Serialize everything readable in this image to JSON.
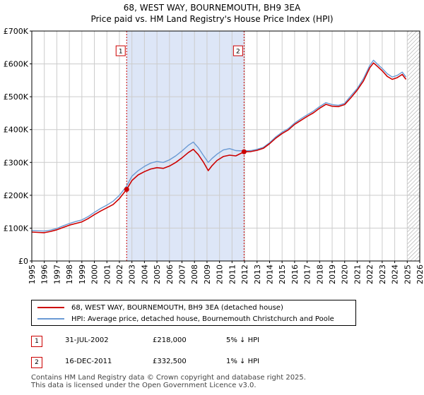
{
  "title_line1": "68, WEST WAY, BOURNEMOUTH, BH9 3EA",
  "title_line2": "Price paid vs. HM Land Registry's House Price Index (HPI)",
  "chart_data": {
    "type": "line",
    "title": "68, WEST WAY, BOURNEMOUTH, BH9 3EA — Price paid vs. HM Land Registry's House Price Index (HPI)",
    "xlabel": "",
    "ylabel": "",
    "xlim": [
      1995,
      2026
    ],
    "ylim": [
      0,
      700000
    ],
    "x_ticks": [
      "1995",
      "1996",
      "1997",
      "1998",
      "1999",
      "2000",
      "2001",
      "2002",
      "2003",
      "2004",
      "2005",
      "2006",
      "2007",
      "2008",
      "2009",
      "2010",
      "2011",
      "2012",
      "2013",
      "2014",
      "2015",
      "2016",
      "2017",
      "2018",
      "2019",
      "2020",
      "2021",
      "2022",
      "2023",
      "2024",
      "2025",
      "2026"
    ],
    "y_ticks": [
      {
        "value": 0,
        "label": "£0"
      },
      {
        "value": 100000,
        "label": "£100K"
      },
      {
        "value": 200000,
        "label": "£200K"
      },
      {
        "value": 300000,
        "label": "£300K"
      },
      {
        "value": 400000,
        "label": "£400K"
      },
      {
        "value": 500000,
        "label": "£500K"
      },
      {
        "value": 600000,
        "label": "£600K"
      },
      {
        "value": 700000,
        "label": "£700K"
      }
    ],
    "grid": true,
    "shaded_period": [
      2002.58,
      2011.96
    ],
    "future_hatch_from": 2025.0,
    "series": [
      {
        "name": "HPI: Average price, detached house, Bournemouth Christchurch and Poole",
        "color": "#6a9ad4",
        "points": [
          [
            1995,
            93000
          ],
          [
            1995.5,
            92000
          ],
          [
            1996,
            91000
          ],
          [
            1996.5,
            94000
          ],
          [
            1997,
            99000
          ],
          [
            1997.5,
            107000
          ],
          [
            1998,
            114000
          ],
          [
            1998.5,
            120000
          ],
          [
            1999,
            125000
          ],
          [
            1999.5,
            135000
          ],
          [
            2000,
            148000
          ],
          [
            2000.5,
            160000
          ],
          [
            2001,
            170000
          ],
          [
            2001.5,
            182000
          ],
          [
            2002,
            200000
          ],
          [
            2002.58,
            228000
          ],
          [
            2003,
            258000
          ],
          [
            2003.5,
            275000
          ],
          [
            2004,
            288000
          ],
          [
            2004.5,
            298000
          ],
          [
            2005,
            303000
          ],
          [
            2005.5,
            300000
          ],
          [
            2006,
            308000
          ],
          [
            2006.5,
            320000
          ],
          [
            2007,
            335000
          ],
          [
            2007.5,
            352000
          ],
          [
            2007.9,
            362000
          ],
          [
            2008.3,
            345000
          ],
          [
            2008.7,
            322000
          ],
          [
            2009.1,
            300000
          ],
          [
            2009.4,
            312000
          ],
          [
            2009.8,
            325000
          ],
          [
            2010.3,
            338000
          ],
          [
            2010.8,
            342000
          ],
          [
            2011.3,
            336000
          ],
          [
            2011.96,
            335000
          ],
          [
            2012.5,
            336000
          ],
          [
            2013,
            340000
          ],
          [
            2013.5,
            346000
          ],
          [
            2014,
            360000
          ],
          [
            2014.5,
            378000
          ],
          [
            2015,
            392000
          ],
          [
            2015.5,
            403000
          ],
          [
            2016,
            420000
          ],
          [
            2016.5,
            433000
          ],
          [
            2017,
            445000
          ],
          [
            2017.5,
            456000
          ],
          [
            2018,
            470000
          ],
          [
            2018.5,
            482000
          ],
          [
            2019,
            476000
          ],
          [
            2019.5,
            474000
          ],
          [
            2020,
            480000
          ],
          [
            2020.5,
            503000
          ],
          [
            2021,
            525000
          ],
          [
            2021.5,
            555000
          ],
          [
            2022,
            595000
          ],
          [
            2022.3,
            611000
          ],
          [
            2022.6,
            600000
          ],
          [
            2023,
            586000
          ],
          [
            2023.4,
            570000
          ],
          [
            2023.8,
            560000
          ],
          [
            2024.2,
            565000
          ],
          [
            2024.6,
            575000
          ],
          [
            2024.9,
            560000
          ]
        ]
      },
      {
        "name": "68, WEST WAY, BOURNEMOUTH, BH9 3EA (detached house)",
        "color": "#cc0000",
        "points": [
          [
            1995,
            88000
          ],
          [
            1995.5,
            87000
          ],
          [
            1996,
            86000
          ],
          [
            1996.5,
            90000
          ],
          [
            1997,
            95000
          ],
          [
            1997.5,
            102000
          ],
          [
            1998,
            109000
          ],
          [
            1998.5,
            114000
          ],
          [
            1999,
            119000
          ],
          [
            1999.5,
            129000
          ],
          [
            2000,
            141000
          ],
          [
            2000.5,
            152000
          ],
          [
            2001,
            162000
          ],
          [
            2001.5,
            172000
          ],
          [
            2002,
            190000
          ],
          [
            2002.58,
            218000
          ],
          [
            2003,
            245000
          ],
          [
            2003.5,
            262000
          ],
          [
            2004,
            272000
          ],
          [
            2004.5,
            280000
          ],
          [
            2005,
            284000
          ],
          [
            2005.5,
            282000
          ],
          [
            2006,
            289000
          ],
          [
            2006.5,
            300000
          ],
          [
            2007,
            314000
          ],
          [
            2007.5,
            330000
          ],
          [
            2007.9,
            340000
          ],
          [
            2008.3,
            324000
          ],
          [
            2008.7,
            302000
          ],
          [
            2009.1,
            275000
          ],
          [
            2009.4,
            290000
          ],
          [
            2009.8,
            306000
          ],
          [
            2010.3,
            318000
          ],
          [
            2010.8,
            322000
          ],
          [
            2011.3,
            320000
          ],
          [
            2011.96,
            332500
          ],
          [
            2012.5,
            333000
          ],
          [
            2013,
            337000
          ],
          [
            2013.5,
            343000
          ],
          [
            2014,
            357000
          ],
          [
            2014.5,
            374000
          ],
          [
            2015,
            388000
          ],
          [
            2015.5,
            399000
          ],
          [
            2016,
            416000
          ],
          [
            2016.5,
            428000
          ],
          [
            2017,
            440000
          ],
          [
            2017.5,
            451000
          ],
          [
            2018,
            465000
          ],
          [
            2018.5,
            477000
          ],
          [
            2019,
            471000
          ],
          [
            2019.5,
            470000
          ],
          [
            2020,
            476000
          ],
          [
            2020.5,
            497000
          ],
          [
            2021,
            520000
          ],
          [
            2021.5,
            548000
          ],
          [
            2022,
            588000
          ],
          [
            2022.3,
            603000
          ],
          [
            2022.6,
            593000
          ],
          [
            2023,
            579000
          ],
          [
            2023.4,
            562000
          ],
          [
            2023.8,
            553000
          ],
          [
            2024.2,
            558000
          ],
          [
            2024.6,
            568000
          ],
          [
            2024.9,
            553000
          ]
        ]
      }
    ],
    "sales": [
      {
        "marker": "1",
        "x": 2002.58,
        "value": 218000
      },
      {
        "marker": "2",
        "x": 2011.96,
        "value": 332500
      }
    ]
  },
  "legend": {
    "series1_label": "68, WEST WAY, BOURNEMOUTH, BH9 3EA (detached house)",
    "series2_label": "HPI: Average price, detached house, Bournemouth Christchurch and Poole"
  },
  "sales_table": [
    {
      "marker": "1",
      "date": "31-JUL-2002",
      "price": "£218,000",
      "hpi": "5% ↓ HPI"
    },
    {
      "marker": "2",
      "date": "16-DEC-2011",
      "price": "£332,500",
      "hpi": "1% ↓ HPI"
    }
  ],
  "footer_line1": "Contains HM Land Registry data © Crown copyright and database right 2025.",
  "footer_line2": "This data is licensed under the Open Government Licence v3.0.",
  "colors": {
    "property": "#cc0000",
    "hpi": "#6a9ad4",
    "shade": "#dde6f7",
    "grid": "#cccccc"
  }
}
